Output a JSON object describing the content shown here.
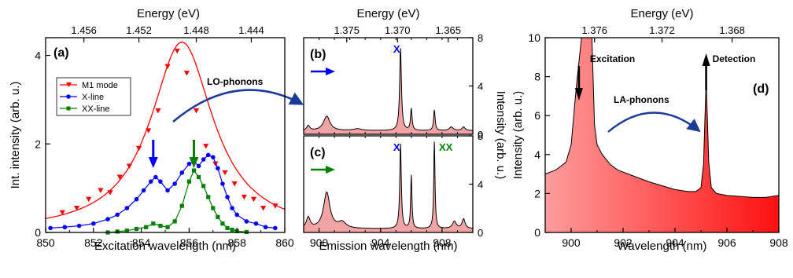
{
  "chart_data": [
    {
      "panel": "(a)",
      "type": "scatter",
      "xlabel": "Excitation wavelength (nm)",
      "ylabel": "Int. intensity (arb. u.)",
      "top_label": "Energy (eV)",
      "xlim": [
        850,
        860
      ],
      "ylim": [
        0,
        4.4
      ],
      "x_ticks": [
        "850",
        "852",
        "854",
        "856",
        "858",
        "860"
      ],
      "y_ticks": [
        "0",
        "2",
        "4"
      ],
      "top_ticks": [
        "1.456",
        "1.452",
        "1.448",
        "1.444"
      ],
      "top_tick_wavelengths": [
        851.6,
        853.9,
        856.3,
        858.6
      ],
      "annotation": "LO-phonons",
      "series": [
        {
          "name": "M1 mode",
          "marker": "triangle-down",
          "color": "#ff0000",
          "x": [
            850.7,
            851.3,
            851.8,
            852.3,
            852.7,
            853.1,
            853.5,
            853.9,
            854.3,
            854.7,
            855.1,
            855.5,
            855.9,
            856.3,
            856.7,
            857.1,
            857.5,
            857.9,
            858.3,
            858.7,
            859.1,
            859.6
          ],
          "y": [
            0.45,
            0.55,
            0.75,
            0.95,
            0.9,
            1.25,
            1.5,
            1.9,
            2.3,
            2.75,
            3.75,
            4.1,
            3.6,
            2.75,
            1.95,
            1.55,
            1.35,
            1.1,
            0.8,
            0.75,
            0.55,
            0.6
          ],
          "fit": {
            "center": 855.7,
            "amp": 4.3,
            "hwhm": 1.6
          }
        },
        {
          "name": "X-line",
          "marker": "circle",
          "color": "#0000ff",
          "x": [
            850.2,
            850.8,
            851.4,
            852.0,
            852.6,
            853.0,
            853.4,
            853.8,
            854.1,
            854.4,
            854.6,
            854.8,
            855.1,
            855.4,
            855.7,
            856.0,
            856.2,
            856.4,
            856.6,
            856.8,
            857.0,
            857.2,
            857.4,
            857.6,
            857.8,
            858.0,
            858.4,
            858.8,
            859.2,
            859.6
          ],
          "y": [
            0.1,
            0.12,
            0.15,
            0.2,
            0.3,
            0.4,
            0.55,
            0.75,
            0.95,
            1.15,
            1.25,
            1.15,
            0.95,
            1.1,
            1.35,
            1.55,
            1.6,
            1.5,
            1.65,
            1.75,
            1.7,
            1.45,
            1.1,
            0.8,
            0.55,
            0.4,
            0.25,
            0.2,
            0.12,
            0.1
          ]
        },
        {
          "name": "XX-line",
          "marker": "square",
          "color": "#008000",
          "x": [
            852.6,
            853.0,
            853.4,
            853.8,
            854.2,
            854.5,
            854.8,
            855.1,
            855.4,
            855.7,
            856.0,
            856.2,
            856.4,
            856.6,
            856.8,
            857.0,
            857.2,
            857.4,
            857.6,
            857.8,
            858.0,
            858.4
          ],
          "y": [
            0.0,
            0.02,
            0.04,
            0.08,
            0.12,
            0.2,
            0.15,
            0.12,
            0.25,
            0.6,
            1.15,
            1.4,
            1.25,
            1.05,
            0.8,
            0.55,
            0.35,
            0.2,
            0.1,
            0.06,
            0.03,
            0.01
          ]
        }
      ],
      "arrows": [
        {
          "x": 854.5,
          "color": "#0000ff"
        },
        {
          "x": 856.2,
          "color": "#008000"
        }
      ]
    },
    {
      "panel": "(b)",
      "type": "area",
      "top_label": "Energy (eV)",
      "ylabel": "Intensity (arb. u.)",
      "xlim": [
        899,
        910
      ],
      "ylim": [
        0,
        8
      ],
      "top_ticks": [
        "1.375",
        "1.370",
        "1.365"
      ],
      "top_tick_wavelengths": [
        901.8,
        905.1,
        908.4
      ],
      "y_ticks": [
        "0",
        "4",
        "8"
      ],
      "peak_labels": [
        {
          "text": "X",
          "x": 905.2,
          "color": "#0000ff"
        }
      ],
      "excitation_arrow_color": "#0000ff",
      "baseline": 0.3,
      "peaks": [
        {
          "x": 899.3,
          "h": 0.4,
          "w": 0.12
        },
        {
          "x": 900.5,
          "h": 1.2,
          "w": 0.25
        },
        {
          "x": 902.5,
          "h": 0.15,
          "w": 0.3
        },
        {
          "x": 905.3,
          "h": 6.8,
          "w": 0.07
        },
        {
          "x": 906.0,
          "h": 1.8,
          "w": 0.06
        },
        {
          "x": 907.5,
          "h": 1.7,
          "w": 0.06
        },
        {
          "x": 908.6,
          "h": 0.3,
          "w": 0.15
        },
        {
          "x": 909.4,
          "h": 0.3,
          "w": 0.12
        }
      ]
    },
    {
      "panel": "(c)",
      "type": "area",
      "xlabel": "Emission wavelength (nm)",
      "xlim": [
        899,
        910
      ],
      "ylim": [
        0,
        8
      ],
      "x_ticks": [
        "900",
        "904",
        "908"
      ],
      "y_ticks": [
        "0",
        "4",
        "8"
      ],
      "peak_labels": [
        {
          "text": "X",
          "x": 905.2,
          "color": "#0000ff"
        },
        {
          "text": "XX",
          "x": 908.4,
          "color": "#008000"
        }
      ],
      "excitation_arrow_color": "#008000",
      "baseline": 0.3,
      "peaks": [
        {
          "x": 899.3,
          "h": 0.9,
          "w": 0.15
        },
        {
          "x": 900.5,
          "h": 3.0,
          "w": 0.25
        },
        {
          "x": 901.5,
          "h": 0.5,
          "w": 0.3
        },
        {
          "x": 905.3,
          "h": 7.0,
          "w": 0.06
        },
        {
          "x": 906.0,
          "h": 4.4,
          "w": 0.05
        },
        {
          "x": 907.5,
          "h": 7.2,
          "w": 0.05
        },
        {
          "x": 908.8,
          "h": 0.6,
          "w": 0.15
        },
        {
          "x": 909.4,
          "h": 0.8,
          "w": 0.12
        }
      ]
    },
    {
      "panel": "(d)",
      "type": "area",
      "top_label": "Energy (eV)",
      "xlabel": "Wavelength (nm)",
      "ylabel": "Intensity (arb. u.)",
      "xlim": [
        899,
        908
      ],
      "ylim": [
        0,
        10
      ],
      "x_ticks": [
        "900",
        "902",
        "904",
        "906",
        "908"
      ],
      "y_ticks": [
        "0",
        "2",
        "4",
        "6",
        "8",
        "10"
      ],
      "top_ticks": [
        "1.376",
        "1.372",
        "1.368"
      ],
      "top_tick_wavelengths": [
        900.9,
        903.5,
        906.2
      ],
      "annotations": [
        "Excitation",
        "Detection",
        "LA-phonons"
      ],
      "curve_x": [
        899.0,
        899.4,
        899.8,
        900.0,
        900.2,
        900.4,
        900.6,
        900.8,
        900.9,
        901.0,
        901.2,
        901.5,
        901.8,
        902.2,
        902.6,
        903.0,
        903.5,
        904.0,
        904.5,
        904.8,
        905.0,
        905.1,
        905.2,
        905.3,
        905.4,
        905.6,
        906.0,
        906.5,
        907.0,
        907.5,
        908.0
      ],
      "curve_y": [
        3.0,
        3.2,
        3.6,
        4.5,
        7.5,
        11.0,
        11.0,
        11.0,
        5.5,
        4.5,
        4.0,
        3.5,
        3.2,
        3.0,
        2.8,
        2.6,
        2.4,
        2.2,
        2.1,
        2.1,
        2.3,
        3.5,
        7.9,
        3.6,
        2.3,
        2.0,
        1.9,
        1.85,
        1.8,
        1.8,
        1.9
      ]
    }
  ]
}
